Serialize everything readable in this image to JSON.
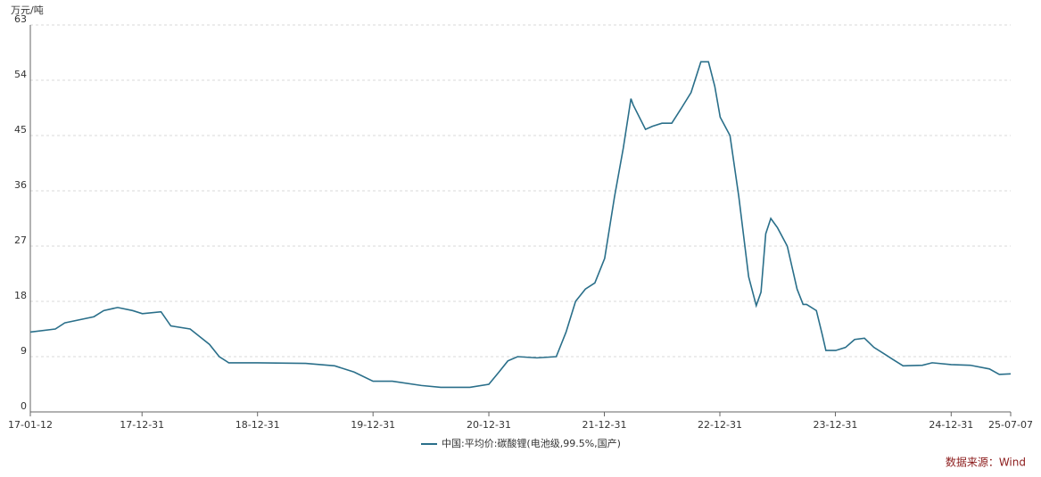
{
  "chart_data": {
    "type": "line",
    "y_label": "万元/吨",
    "source": "数据来源：Wind",
    "x": [
      "17-01-12",
      "17-04-01",
      "17-05-01",
      "17-08-01",
      "17-09-01",
      "17-10-15",
      "17-12-01",
      "18-01-01",
      "18-03-01",
      "18-04-01",
      "18-06-01",
      "18-08-01",
      "18-09-01",
      "18-10-01",
      "18-12-31",
      "19-06-01",
      "19-09-01",
      "19-11-01",
      "19-12-31",
      "20-03-01",
      "20-06-01",
      "20-08-01",
      "20-11-01",
      "20-12-31",
      "21-02-01",
      "21-03-01",
      "21-04-01",
      "21-06-01",
      "21-08-01",
      "21-09-01",
      "21-10-01",
      "21-11-01",
      "21-12-01",
      "22-01-01",
      "22-02-01",
      "22-03-01",
      "22-03-25",
      "22-04-01",
      "22-05-10",
      "22-06-01",
      "22-07-01",
      "22-08-01",
      "22-09-01",
      "22-10-01",
      "22-11-01",
      "22-11-25",
      "22-12-15",
      "23-01-01",
      "23-02-01",
      "23-03-01",
      "23-04-01",
      "23-04-25",
      "23-05-10",
      "23-05-25",
      "23-06-10",
      "23-07-01",
      "23-08-01",
      "23-09-01",
      "23-09-20",
      "23-10-01",
      "23-11-01",
      "23-11-20",
      "23-12-01",
      "24-01-01",
      "24-02-01",
      "24-03-01",
      "24-04-01",
      "24-05-01",
      "24-06-01",
      "24-07-01",
      "24-08-01",
      "24-10-01",
      "24-11-01",
      "24-12-31",
      "25-03-01",
      "25-05-01",
      "25-06-01",
      "25-07-07"
    ],
    "series": [
      {
        "name": "中国:平均价:碳酸锂(电池级,99.5%,国产)",
        "color": "#2a6f8a",
        "values": [
          13.0,
          13.5,
          14.5,
          15.5,
          16.5,
          17.0,
          16.5,
          16.0,
          16.3,
          14.0,
          13.5,
          11.0,
          9.0,
          8.0,
          8.0,
          7.9,
          7.5,
          6.5,
          5.0,
          5.0,
          4.3,
          4.0,
          4.0,
          4.5,
          6.5,
          8.3,
          9.0,
          8.8,
          9.0,
          13,
          18,
          20,
          21,
          25,
          35,
          43,
          51,
          50,
          46,
          46.5,
          47,
          47,
          49.5,
          52,
          57,
          57,
          53,
          48,
          45,
          35,
          22,
          17.3,
          19.5,
          29,
          31.5,
          30,
          27,
          20,
          17.5,
          17.5,
          16.5,
          12.5,
          10,
          10,
          10.5,
          11.8,
          12,
          10.5,
          9.5,
          8.5,
          7.5,
          7.6,
          8,
          7.7,
          7.6,
          7.0,
          6.1,
          6.2
        ]
      }
    ],
    "xlim": [
      "17-01-12",
      "25-07-07"
    ],
    "xticks": [
      "17-01-12",
      "17-12-31",
      "18-12-31",
      "19-12-31",
      "20-12-31",
      "21-12-31",
      "22-12-31",
      "23-12-31",
      "24-12-31",
      "25-07-07"
    ],
    "ylim": [
      0,
      63
    ],
    "yticks": [
      0,
      9,
      18,
      27,
      36,
      45,
      54,
      63
    ],
    "grid": true
  }
}
